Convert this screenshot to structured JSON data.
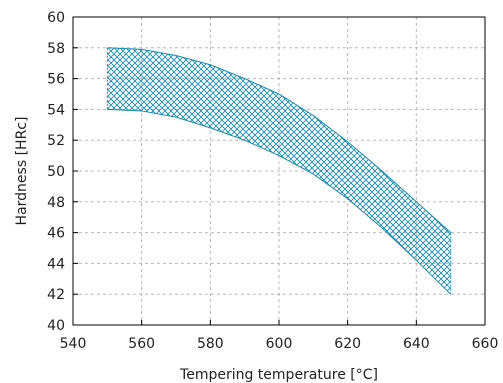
{
  "chart_data": {
    "type": "area",
    "title": "",
    "xlabel": "Tempering temperature [°C]",
    "ylabel": "Hardness [HRc]",
    "xlim": [
      540,
      660
    ],
    "ylim": [
      40,
      60
    ],
    "xticks": [
      540,
      560,
      580,
      600,
      620,
      640,
      660
    ],
    "yticks": [
      40,
      42,
      44,
      46,
      48,
      50,
      52,
      54,
      56,
      58,
      60
    ],
    "grid": true,
    "band": {
      "fill_pattern": "crosshatch",
      "color": "#1a8cb0",
      "x": [
        550,
        560,
        570,
        580,
        590,
        600,
        610,
        620,
        630,
        640,
        650
      ],
      "upper": [
        58,
        57.9,
        57.5,
        56.9,
        56.0,
        55.0,
        53.6,
        51.9,
        50.0,
        48.0,
        46.0
      ],
      "lower": [
        54,
        53.9,
        53.5,
        52.8,
        52.0,
        51.0,
        49.8,
        48.2,
        46.3,
        44.2,
        42.0
      ]
    }
  }
}
